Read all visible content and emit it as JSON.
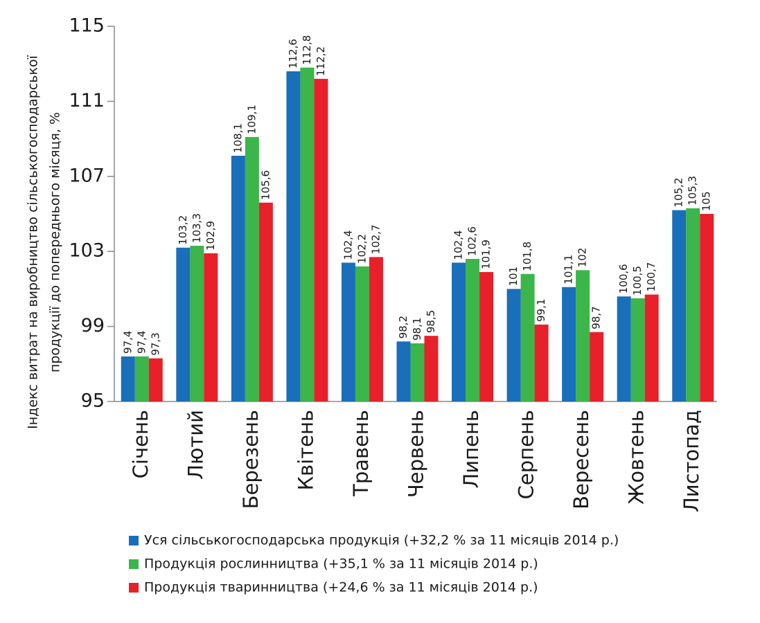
{
  "chart_data": {
    "type": "bar",
    "y_label": [
      "Індекс витрат на виробництво сільськогосподарської",
      "продукції до попереднього місяця, %"
    ],
    "categories": [
      "Січень",
      "Лютий",
      "Березень",
      "Квітень",
      "Травень",
      "Червень",
      "Липень",
      "Серпень",
      "Вересень",
      "Жовтень",
      "Листопад"
    ],
    "series": [
      {
        "name": "Уся сільськогосподарська продукція (+32,2 % за 11 місяців 2014 р.)",
        "color": "#1a6fba",
        "values": [
          97.4,
          103.2,
          108.1,
          112.6,
          102.4,
          98.2,
          102.4,
          101,
          101.1,
          100.6,
          105.2
        ],
        "value_labels": [
          "97,4",
          "103,2",
          "108,1",
          "112,6",
          "102,4",
          "98,2",
          "102,4",
          "101",
          "101,1",
          "100,6",
          "105,2"
        ]
      },
      {
        "name": "Продукція рослинництва (+35,1 % за 11 місяців 2014 р.)",
        "color": "#3cb54a",
        "values": [
          97.4,
          103.3,
          109.1,
          112.8,
          102.2,
          98.1,
          102.6,
          101.8,
          102,
          100.5,
          105.3
        ],
        "value_labels": [
          "97,4",
          "103,3",
          "109,1",
          "112,8",
          "102,2",
          "98,1",
          "102,6",
          "101,8",
          "102",
          "100,5",
          "105,3"
        ]
      },
      {
        "name": "Продукція тваринництва (+24,6 % за 11 місяців 2014 р.)",
        "color": "#e8202a",
        "values": [
          97.3,
          102.9,
          105.6,
          112.2,
          102.7,
          98.5,
          101.9,
          99.1,
          98.7,
          100.7,
          105
        ],
        "value_labels": [
          "97,3",
          "102,9",
          "105,6",
          "112,2",
          "102,7",
          "98,5",
          "101,9",
          "99,1",
          "98,7",
          "100,7",
          "105"
        ]
      }
    ],
    "ylim": [
      95,
      115
    ],
    "yticks": [
      95,
      99,
      103,
      107,
      111,
      115
    ],
    "grid": false
  }
}
